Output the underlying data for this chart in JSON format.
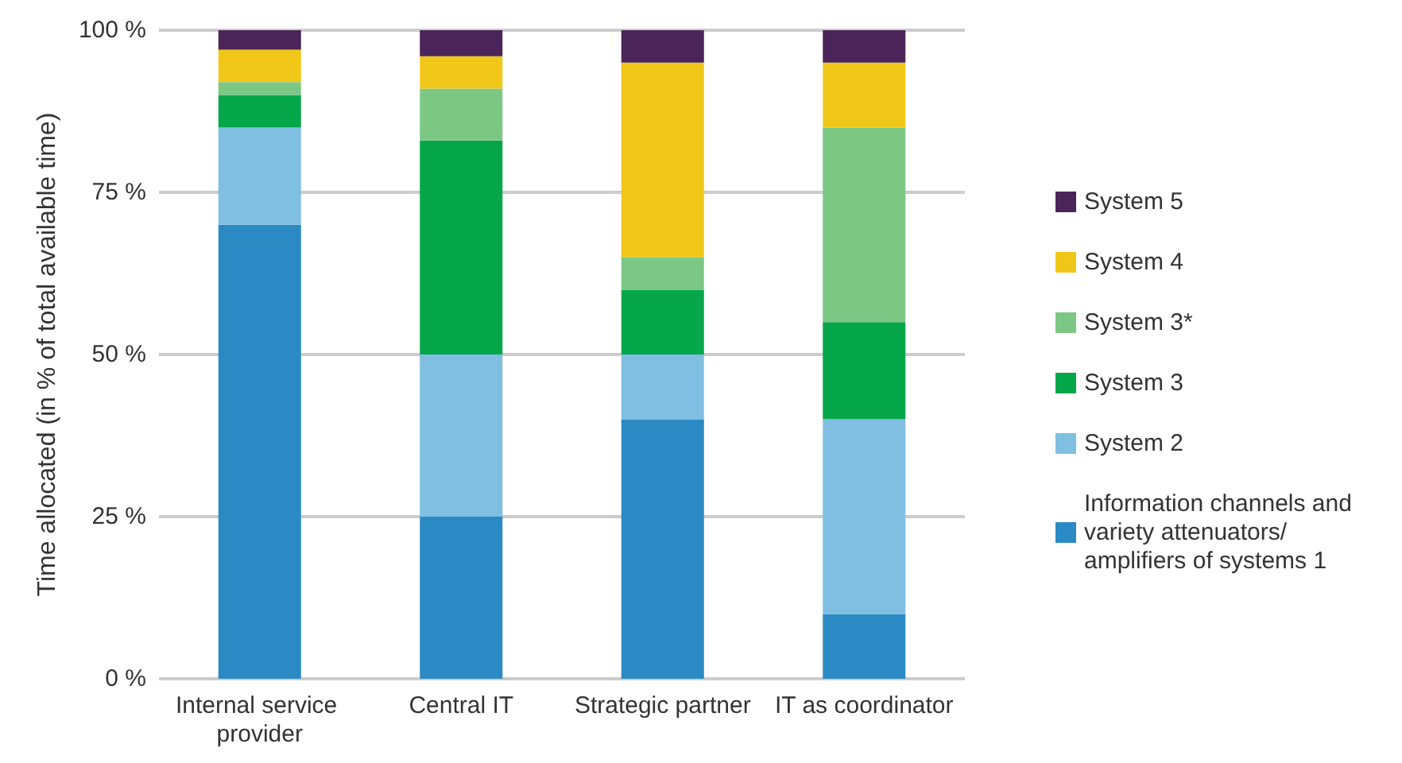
{
  "chart_data": {
    "type": "bar",
    "stacked": true,
    "ylabel": "Time allocated (in % of total available time)",
    "categories": [
      "Internal service provider",
      "Central IT",
      "Strategic partner",
      "IT as coordinator"
    ],
    "series": [
      {
        "name": "Information channels and variety attenuators/ amplifiers of systems 1",
        "color": "#2b8ac4",
        "values": [
          70,
          25,
          40,
          10
        ]
      },
      {
        "name": "System 2",
        "color": "#80bfe2",
        "values": [
          15,
          25,
          10,
          30
        ]
      },
      {
        "name": "System 3",
        "color": "#06a74a",
        "values": [
          5,
          33,
          10,
          15
        ]
      },
      {
        "name": "System 3*",
        "color": "#7dc785",
        "values": [
          2,
          8,
          5,
          30
        ]
      },
      {
        "name": "System 4",
        "color": "#f0c719",
        "values": [
          5,
          5,
          30,
          10
        ]
      },
      {
        "name": "System 5",
        "color": "#4b2559",
        "values": [
          3,
          4,
          5,
          5
        ]
      }
    ],
    "ylim": [
      0,
      100
    ],
    "yticks": [
      {
        "value": 0,
        "label": "0 %"
      },
      {
        "value": 25,
        "label": "25 %"
      },
      {
        "value": 50,
        "label": "50 %"
      },
      {
        "value": 75,
        "label": "75 %"
      },
      {
        "value": 100,
        "label": "100 %"
      }
    ],
    "grid": "y",
    "legend": "right"
  }
}
